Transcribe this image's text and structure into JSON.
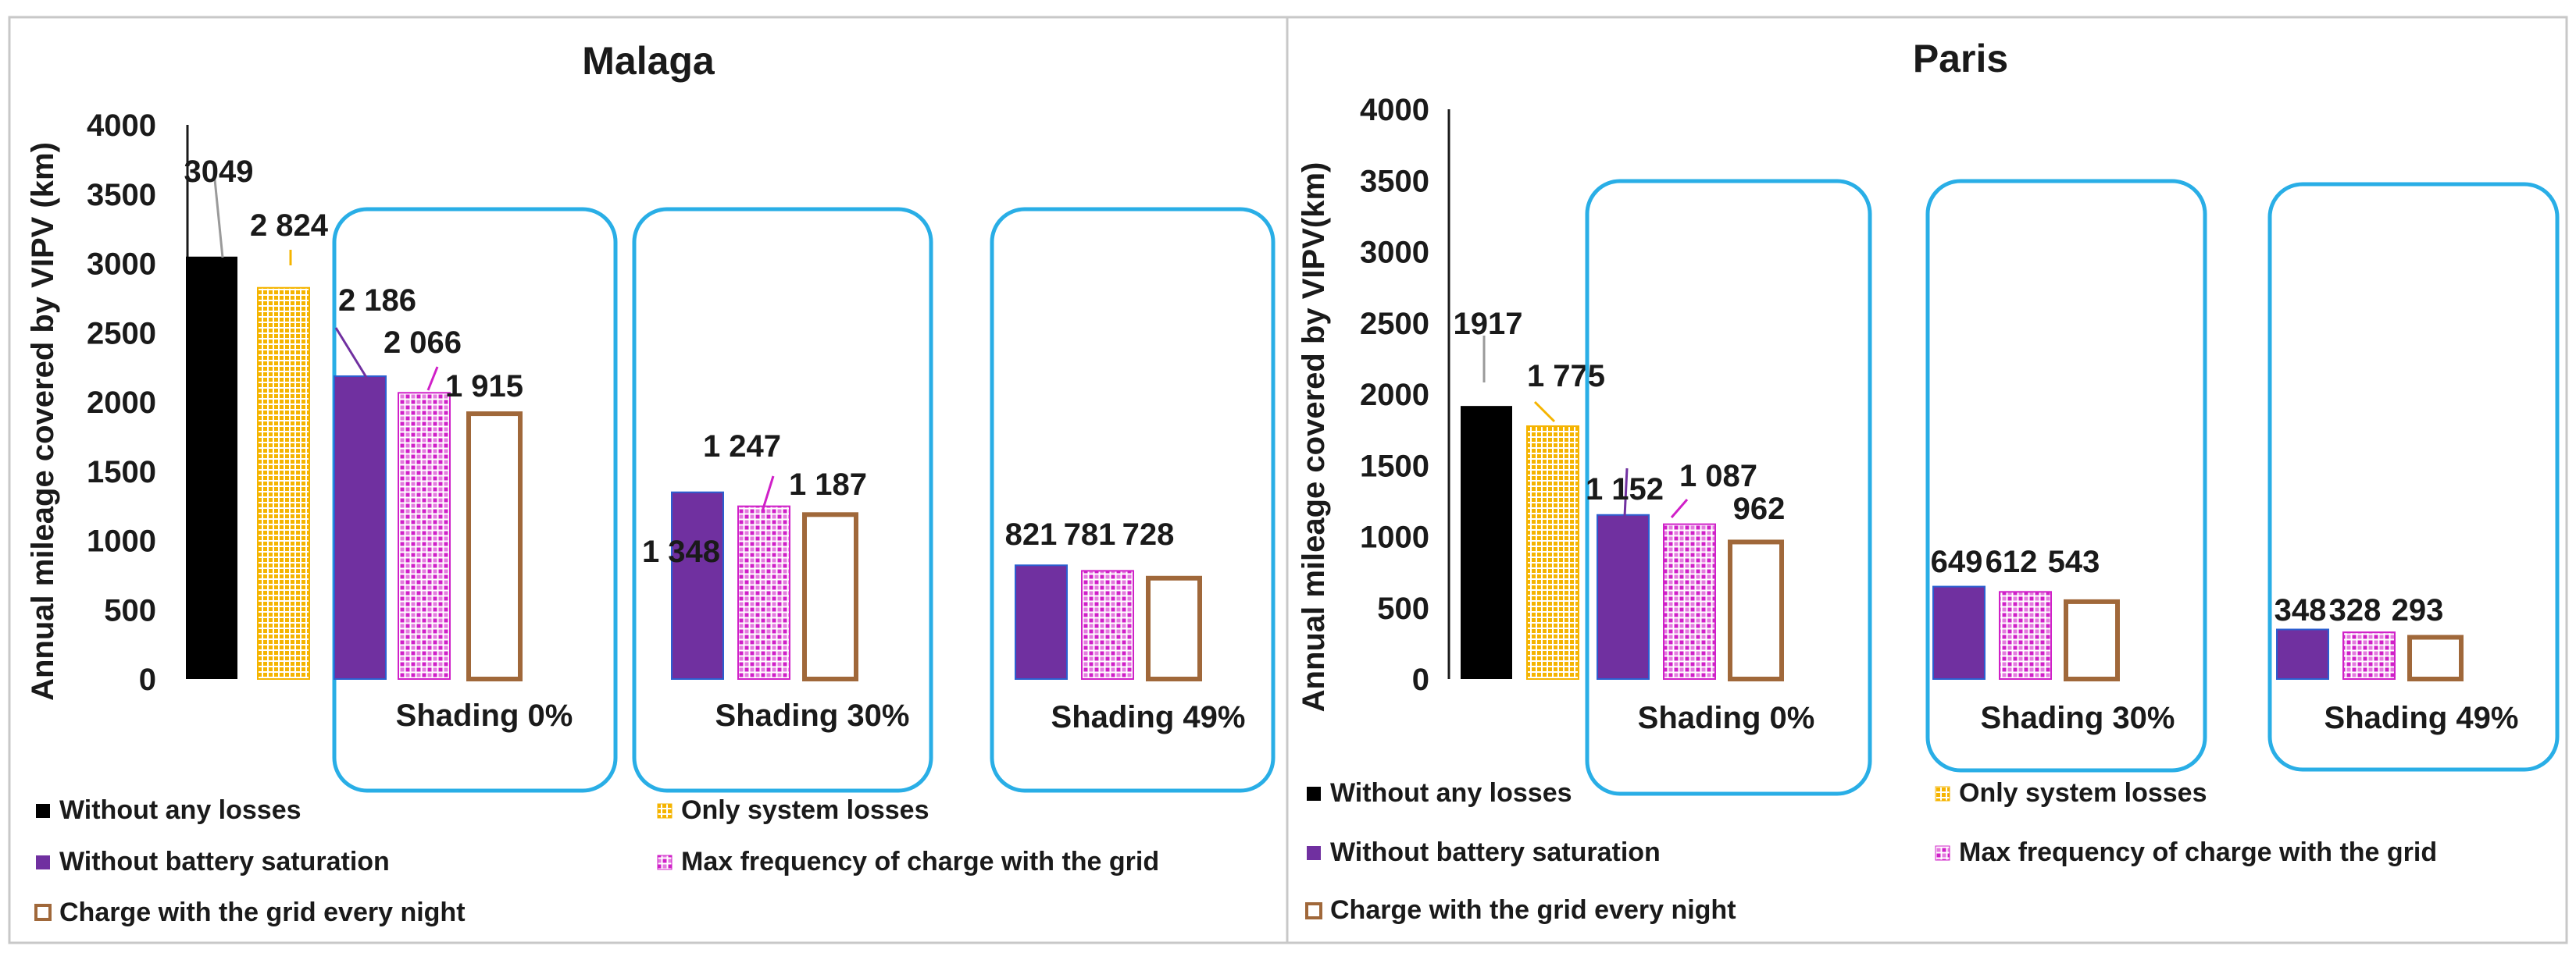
{
  "legend": [
    {
      "key": "no_losses",
      "label": "Without any losses",
      "color": "#000000",
      "style": "solid"
    },
    {
      "key": "system_losses",
      "label": "Only system losses",
      "color": "#f5b400",
      "style": "grid"
    },
    {
      "key": "no_battery_saturation",
      "label": "Without battery saturation",
      "color": "#7030a0",
      "style": "solid"
    },
    {
      "key": "max_freq_grid",
      "label": "Max frequency of charge with the grid",
      "color": "#d020c8",
      "style": "dots"
    },
    {
      "key": "grid_every_night",
      "label": "Charge with the grid every night",
      "color": "#a0683a",
      "style": "outline"
    }
  ],
  "chart_data": [
    {
      "type": "bar",
      "title": "Malaga",
      "ylabel": "Annual mileage covered  by VIPV (km)",
      "xlabel": "",
      "ylim": [
        0,
        4000
      ],
      "yticks": [
        0,
        500,
        1000,
        1500,
        2000,
        2500,
        3000,
        3500,
        4000
      ],
      "groups": [
        {
          "name": "",
          "bars": [
            {
              "series": "no_losses",
              "value": 3049,
              "label": "3049"
            },
            {
              "series": "system_losses",
              "value": 2824,
              "label": "2 824"
            }
          ]
        },
        {
          "name": "Shading 0%",
          "bars": [
            {
              "series": "no_battery_saturation",
              "value": 2186,
              "label": "2 186"
            },
            {
              "series": "max_freq_grid",
              "value": 2066,
              "label": "2 066"
            },
            {
              "series": "grid_every_night",
              "value": 1915,
              "label": "1 915"
            }
          ]
        },
        {
          "name": "Shading 30%",
          "bars": [
            {
              "series": "no_battery_saturation",
              "value": 1348,
              "label": "1 348"
            },
            {
              "series": "max_freq_grid",
              "value": 1247,
              "label": "1 247"
            },
            {
              "series": "grid_every_night",
              "value": 1187,
              "label": "1 187"
            }
          ]
        },
        {
          "name": "Shading 49%",
          "bars": [
            {
              "series": "no_battery_saturation",
              "value": 821,
              "label": "821"
            },
            {
              "series": "max_freq_grid",
              "value": 781,
              "label": "781"
            },
            {
              "series": "grid_every_night",
              "value": 728,
              "label": "728"
            }
          ]
        }
      ]
    },
    {
      "type": "bar",
      "title": "Paris",
      "ylabel": "Annual mileage covered  by VIPV(km)",
      "xlabel": "",
      "ylim": [
        0,
        4000
      ],
      "yticks": [
        0,
        500,
        1000,
        1500,
        2000,
        2500,
        3000,
        3500,
        4000
      ],
      "groups": [
        {
          "name": "",
          "bars": [
            {
              "series": "no_losses",
              "value": 1917,
              "label": "1917"
            },
            {
              "series": "system_losses",
              "value": 1775,
              "label": "1 775"
            }
          ]
        },
        {
          "name": "Shading 0%",
          "bars": [
            {
              "series": "no_battery_saturation",
              "value": 1152,
              "label": "1 152"
            },
            {
              "series": "max_freq_grid",
              "value": 1087,
              "label": "1 087"
            },
            {
              "series": "grid_every_night",
              "value": 962,
              "label": "962"
            }
          ]
        },
        {
          "name": "Shading 30%",
          "bars": [
            {
              "series": "no_battery_saturation",
              "value": 649,
              "label": "649"
            },
            {
              "series": "max_freq_grid",
              "value": 612,
              "label": "612"
            },
            {
              "series": "grid_every_night",
              "value": 543,
              "label": "543"
            }
          ]
        },
        {
          "name": "Shading 49%",
          "bars": [
            {
              "series": "no_battery_saturation",
              "value": 348,
              "label": "348"
            },
            {
              "series": "max_freq_grid",
              "value": 328,
              "label": "328"
            },
            {
              "series": "grid_every_night",
              "value": 293,
              "label": "293"
            }
          ]
        }
      ]
    }
  ]
}
